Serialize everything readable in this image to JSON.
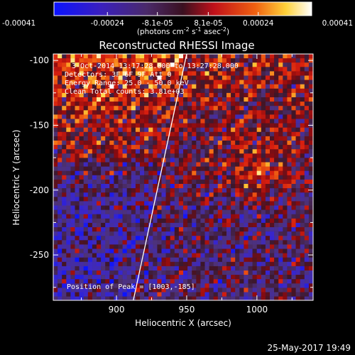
{
  "chart_data": {
    "type": "heatmap",
    "title": "Reconstructed RHESSI Image",
    "xlabel": "Heliocentric X (arcsec)",
    "ylabel": "Heliocentric Y (arcsec)",
    "xlim": [
      855,
      1040
    ],
    "ylim": [
      -285,
      -95
    ],
    "x_ticks": [
      900,
      950,
      1000
    ],
    "y_ticks": [
      -100,
      -150,
      -200,
      -250
    ],
    "colorbar": {
      "colormap": "blue-purple-red-orange-yellow-white",
      "range": [
        -0.00041,
        0.00041
      ],
      "tick_values": [
        -0.00041,
        -0.00024,
        -8.1e-05,
        8.1e-05,
        0.00024,
        0.00041
      ],
      "tick_labels": [
        "-0.00041",
        "-0.00024",
        "-8.1e-05",
        "8.1e-05",
        "0.00024",
        "0.00041"
      ],
      "unit_parts": [
        "(photons cm",
        "-2",
        " s",
        "-1",
        " asec",
        "-2",
        ")"
      ]
    },
    "info_lines": [
      "3-Oct-2014 13:17:28.000 to 13:27:28.000",
      "Detectors: 3F 6F 9F  Att 0",
      "Energy Range: 25.0 - 50.0 keV",
      "Clean     Total counts: 3.81e+03"
    ],
    "peak_label": "Position of Peak = [1003,-185]",
    "peak": [
      1003,
      -185
    ],
    "limb_line": {
      "from": [
        912,
        -285
      ],
      "to": [
        950,
        -95
      ]
    }
  },
  "footer": {
    "timestamp": "25-May-2017 19:49"
  },
  "colors": {
    "background": "#000000",
    "text": "#ffffff",
    "limb": "#ffffff"
  }
}
